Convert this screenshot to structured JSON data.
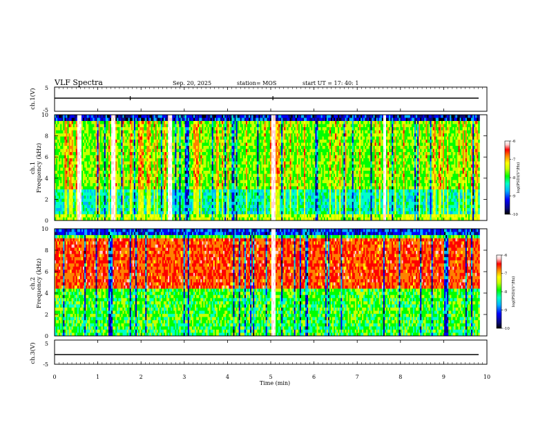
{
  "header": {
    "title": "VLF Spectra",
    "date": "Sep. 20, 2025",
    "station": "station= MOS",
    "start": "start  UT  =   17: 40: 1"
  },
  "colors": {
    "colormap": [
      "#000000",
      "#0a0a7a",
      "#0000ff",
      "#00b4ff",
      "#00ffc8",
      "#00ff00",
      "#c8ff00",
      "#ffff00",
      "#ff8000",
      "#ff0000",
      "#ffd0d0",
      "#ffffff"
    ],
    "trace": "#000000",
    "frame": "#000000"
  },
  "chart_data": [
    {
      "type": "line",
      "name": "ch.1 waveform",
      "ylabel": "ch.1(V)",
      "ylim": [
        -5,
        5
      ],
      "yticks": [
        "5",
        "-5"
      ],
      "level": 0,
      "spikes": [
        1.75,
        5.05
      ]
    },
    {
      "type": "heatmap",
      "name": "ch.1 spectrogram",
      "ylabel": "ch.1\nFrequency (kHz)",
      "ylim": [
        0,
        10
      ],
      "yticks": [
        "0",
        "2",
        "4",
        "6",
        "8",
        "10"
      ],
      "xlim": [
        0,
        9.83
      ],
      "strong_bursts_min": [
        5.05,
        7.62,
        0.55,
        1.35,
        2.65
      ],
      "colorbar": {
        "label": "log(PSD)(V²/Hz)",
        "range": [
          -10,
          -6
        ],
        "ticks": [
          "-6",
          "-7",
          "-8",
          "-9",
          "-10"
        ]
      }
    },
    {
      "type": "heatmap",
      "name": "ch.2 spectrogram",
      "ylabel": "ch.2\nFrequency (kHz)",
      "ylim": [
        0,
        10
      ],
      "yticks": [
        "0",
        "2",
        "4",
        "6",
        "8",
        "10"
      ],
      "xlim": [
        0,
        9.83
      ],
      "band_kHz": [
        4.5,
        9
      ],
      "strong_bursts_min": [
        5.05
      ],
      "colorbar": {
        "label": "log(PSD)(V²/Hz)",
        "range": [
          -10,
          -6
        ],
        "ticks": [
          "-6",
          "-7",
          "-8",
          "-9",
          "-10"
        ]
      }
    },
    {
      "type": "line",
      "name": "ch.3 waveform",
      "ylabel": "ch.3(V)",
      "ylim": [
        -5,
        5
      ],
      "yticks": [
        "5",
        "-5"
      ],
      "level": 0
    }
  ],
  "xaxis": {
    "label": "Time  (min)",
    "range": [
      0,
      10
    ],
    "ticks": [
      "0",
      "1",
      "2",
      "3",
      "4",
      "5",
      "6",
      "7",
      "8",
      "9",
      "10"
    ]
  },
  "colorbar_label": "log(PSD)(V²/Hz)"
}
